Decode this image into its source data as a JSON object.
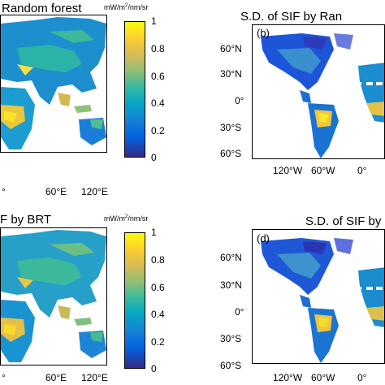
{
  "panels": {
    "a": {
      "title": "Random forest",
      "xticks": [
        "60°E",
        "120°E"
      ],
      "xtick_left": "°"
    },
    "b": {
      "title": "S.D. of SIF by Ran",
      "letter": "(b)",
      "yticks": [
        "60°N",
        "30°N",
        "0°",
        "30°S",
        "60°S"
      ],
      "xticks": [
        "120°W",
        "60°W",
        "0°"
      ]
    },
    "c": {
      "title": "F by BRT",
      "xticks": [
        "60°E",
        "120°E"
      ],
      "xtick_left": "°"
    },
    "d": {
      "title": "S.D. of SIF by",
      "letter": "(d)",
      "yticks": [
        "60°N",
        "30°N",
        "0°",
        "30°S",
        "60°S"
      ],
      "xticks": [
        "120°W",
        "60°W",
        "0°"
      ]
    }
  },
  "colorbar_top": {
    "unit_prefix": "mW/m",
    "unit_power": "2",
    "unit_suffix": "/nm/sr",
    "ticks": [
      "1",
      "0.8",
      "0.6",
      "0.4",
      "0.2",
      "0"
    ]
  },
  "colorbar_bottom": {
    "unit_prefix": "mW/m",
    "unit_power": "2",
    "unit_suffix": "/nm/sr",
    "ticks": [
      "1",
      "0.8",
      "0.6",
      "0.4",
      "0.2",
      "0"
    ]
  },
  "colors": {
    "low": "#352a87",
    "mid": "#1fa3c8",
    "high": "#f9fb0e"
  }
}
